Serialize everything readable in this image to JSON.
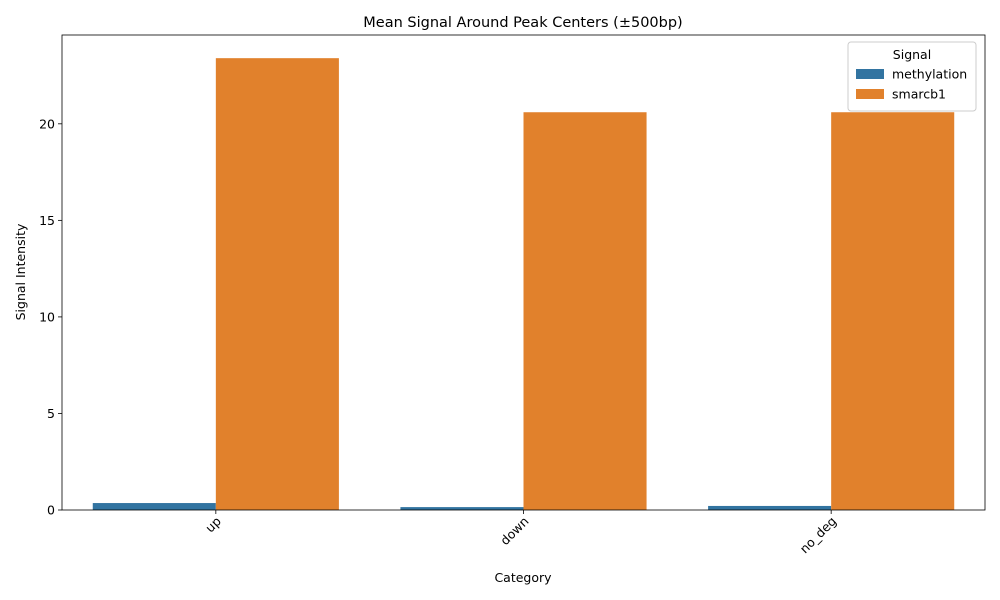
{
  "chart_data": {
    "type": "bar",
    "title": "Mean Signal Around Peak Centers (±500bp)",
    "xlabel": "Category",
    "ylabel": "Signal Intensity",
    "categories": [
      "up",
      "down",
      "no_deg"
    ],
    "series": [
      {
        "name": "methylation",
        "values": [
          0.36,
          0.15,
          0.21
        ],
        "color": "#3274a1"
      },
      {
        "name": "smarcb1",
        "values": [
          23.4,
          20.6,
          20.6
        ],
        "color": "#e1812c"
      }
    ],
    "ylim": [
      0,
      24.6
    ],
    "yticks": [
      0,
      5,
      10,
      15,
      20
    ],
    "legend": {
      "title": "Signal",
      "position": "top-right"
    },
    "grid": false
  }
}
